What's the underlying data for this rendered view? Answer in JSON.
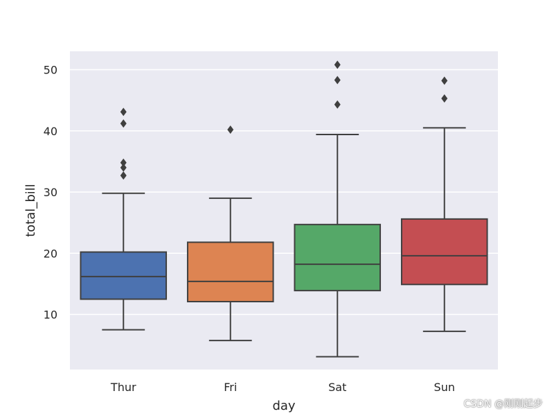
{
  "chart_data": {
    "type": "box",
    "xlabel": "day",
    "ylabel": "total_bill",
    "ylim": [
      1,
      53
    ],
    "yticks": [
      10,
      20,
      30,
      40,
      50
    ],
    "grid": true,
    "background_color": "#EAEAF2",
    "grid_color": "#FFFFFF",
    "line_color": "#3F3F3F",
    "categories": [
      "Thur",
      "Fri",
      "Sat",
      "Sun"
    ],
    "boxes": [
      {
        "category": "Thur",
        "color": "#4C72B0",
        "whisker_low": 7.5,
        "q1": 12.5,
        "median": 16.2,
        "q3": 20.2,
        "whisker_high": 29.8,
        "outliers": [
          32.7,
          34.0,
          34.8,
          41.2,
          43.1
        ]
      },
      {
        "category": "Fri",
        "color": "#DD8452",
        "whisker_low": 5.75,
        "q1": 12.1,
        "median": 15.4,
        "q3": 21.8,
        "whisker_high": 29.0,
        "outliers": [
          40.2
        ]
      },
      {
        "category": "Sat",
        "color": "#55A868",
        "whisker_low": 3.1,
        "q1": 13.9,
        "median": 18.2,
        "q3": 24.7,
        "whisker_high": 39.4,
        "outliers": [
          44.3,
          48.3,
          50.8
        ]
      },
      {
        "category": "Sun",
        "color": "#C44E52",
        "whisker_low": 7.25,
        "q1": 14.9,
        "median": 19.6,
        "q3": 25.6,
        "whisker_high": 40.5,
        "outliers": [
          45.3,
          48.2
        ]
      }
    ]
  },
  "watermark": "CSDN @刚刚起步"
}
